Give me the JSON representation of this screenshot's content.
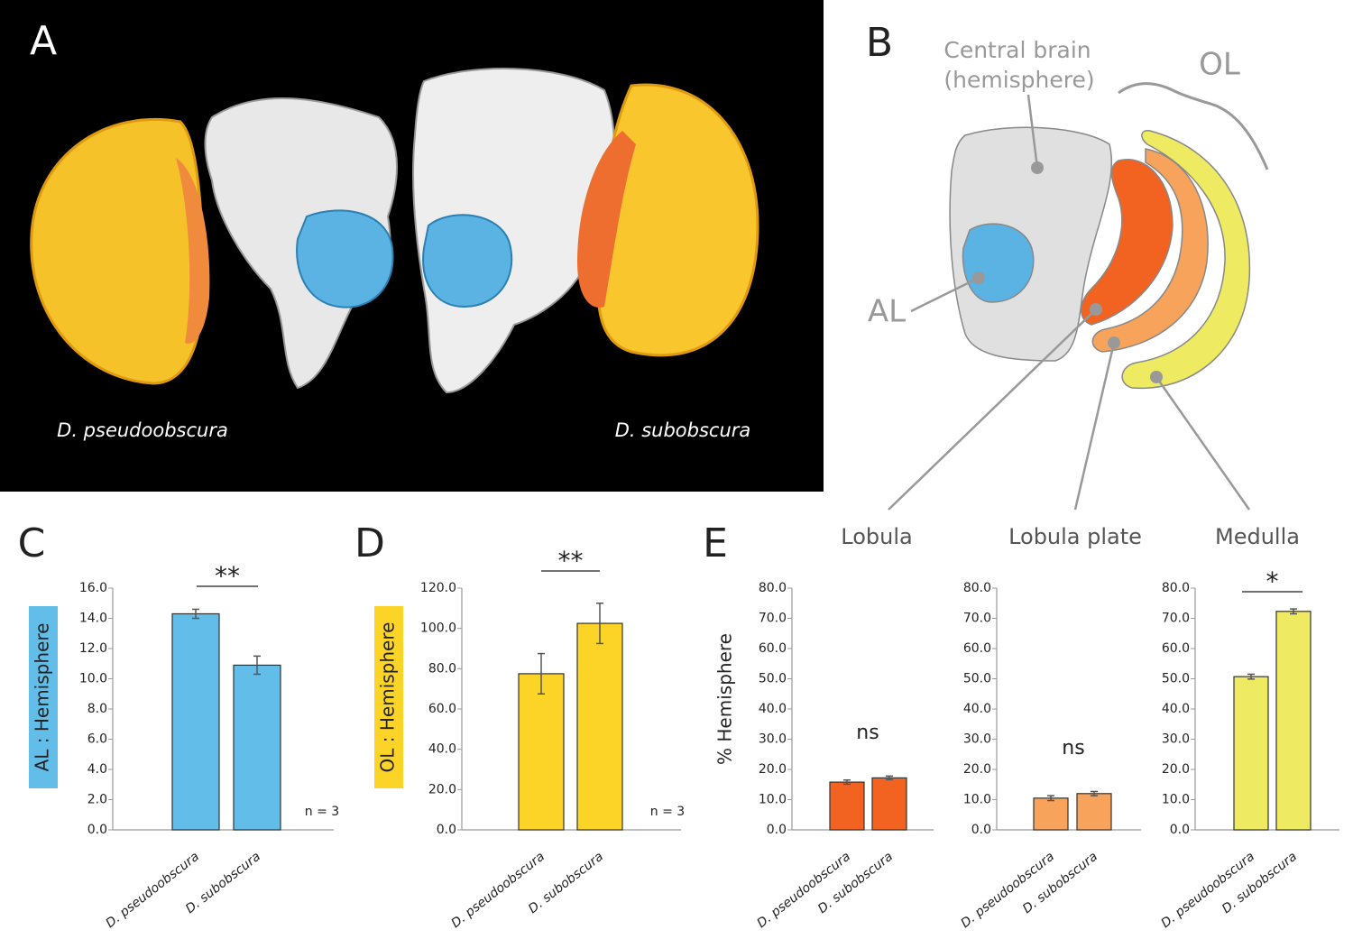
{
  "panel_a": {
    "label": "A",
    "left_species": "D. pseudoobscura",
    "right_species": "D. subobscura"
  },
  "panel_b": {
    "label": "B",
    "central_brain": [
      "Central brain",
      "(hemisphere)"
    ],
    "ol": "OL",
    "al": "AL",
    "lobula": "Lobula",
    "lobula_plate": "Lobula plate",
    "medulla": "Medulla"
  },
  "chart_data": [
    {
      "type": "bar",
      "panel": "C",
      "ylabel": "AL : Hemisphere",
      "categories": [
        "D. pseudoobscura",
        "D. subobscura"
      ],
      "values": [
        14.3,
        10.9
      ],
      "errors": [
        0.3,
        0.6
      ],
      "color": "#62bde9",
      "ylim": [
        0,
        16
      ],
      "yticks": [
        {
          "value": 0,
          "label": "0.0"
        },
        {
          "value": 2,
          "label": "2.0"
        },
        {
          "value": 4,
          "label": "4.0"
        },
        {
          "value": 6,
          "label": "6.0"
        },
        {
          "value": 8,
          "label": "8.0"
        },
        {
          "value": 10,
          "label": "10.0"
        },
        {
          "value": 12,
          "label": "12.0"
        },
        {
          "value": 14,
          "label": "14.0"
        },
        {
          "value": 16,
          "label": "16.0"
        }
      ],
      "significance": "**",
      "note": "n = 3"
    },
    {
      "type": "bar",
      "panel": "D",
      "ylabel": "OL : Hemisphere",
      "categories": [
        "D. pseudoobscura",
        "D. subobscura"
      ],
      "values": [
        77.5,
        102.5
      ],
      "errors": [
        10,
        10
      ],
      "color": "#fcd427",
      "ylim": [
        0,
        120
      ],
      "yticks": [
        {
          "value": 0,
          "label": "0.0"
        },
        {
          "value": 20,
          "label": "20.0"
        },
        {
          "value": 40,
          "label": "40.0"
        },
        {
          "value": 60,
          "label": "60.0"
        },
        {
          "value": 80,
          "label": "80.0"
        },
        {
          "value": 100,
          "label": "100.0"
        },
        {
          "value": 120,
          "label": "120.0"
        }
      ],
      "significance": "**",
      "note": "n = 3"
    },
    {
      "type": "bar",
      "panel": "E",
      "ylabel": "%  Hemisphere",
      "categories": [
        "D. pseudoobscura",
        "D. subobscura"
      ],
      "values": [
        15.8,
        17.2
      ],
      "errors": [
        0.7,
        0.6
      ],
      "color": "#f26322",
      "ylim": [
        0,
        80
      ],
      "yticks": [
        {
          "value": 0,
          "label": "0.0"
        },
        {
          "value": 10,
          "label": "10.0"
        },
        {
          "value": 20,
          "label": "20.0"
        },
        {
          "value": 30,
          "label": "30.0"
        },
        {
          "value": 40,
          "label": "40.0"
        },
        {
          "value": 50,
          "label": "50.0"
        },
        {
          "value": 60,
          "label": "60.0"
        },
        {
          "value": 70,
          "label": "70.0"
        },
        {
          "value": 80,
          "label": "80.0"
        }
      ],
      "significance": "ns"
    },
    {
      "type": "bar",
      "categories": [
        "D. pseudoobscura",
        "D. subobscura"
      ],
      "values": [
        10.5,
        12.0
      ],
      "errors": [
        0.8,
        0.7
      ],
      "color": "#f7a35c",
      "ylim": [
        0,
        80
      ],
      "yticks": [
        {
          "value": 0,
          "label": "0.0"
        },
        {
          "value": 10,
          "label": "10.0"
        },
        {
          "value": 20,
          "label": "20.0"
        },
        {
          "value": 30,
          "label": "30.0"
        },
        {
          "value": 40,
          "label": "40.0"
        },
        {
          "value": 50,
          "label": "50.0"
        },
        {
          "value": 60,
          "label": "60.0"
        },
        {
          "value": 70,
          "label": "70.0"
        },
        {
          "value": 80,
          "label": "80.0"
        }
      ],
      "significance": "ns"
    },
    {
      "type": "bar",
      "categories": [
        "D. pseudoobscura",
        "D. subobscura"
      ],
      "values": [
        50.7,
        72.3
      ],
      "errors": [
        0.8,
        0.8
      ],
      "color": "#eeeb62",
      "ylim": [
        0,
        80
      ],
      "yticks": [
        {
          "value": 0,
          "label": "0.0"
        },
        {
          "value": 10,
          "label": "10.0"
        },
        {
          "value": 20,
          "label": "20.0"
        },
        {
          "value": 30,
          "label": "30.0"
        },
        {
          "value": 40,
          "label": "40.0"
        },
        {
          "value": 50,
          "label": "50.0"
        },
        {
          "value": 60,
          "label": "60.0"
        },
        {
          "value": 70,
          "label": "70.0"
        },
        {
          "value": 80,
          "label": "80.0"
        }
      ],
      "significance": "*"
    }
  ]
}
